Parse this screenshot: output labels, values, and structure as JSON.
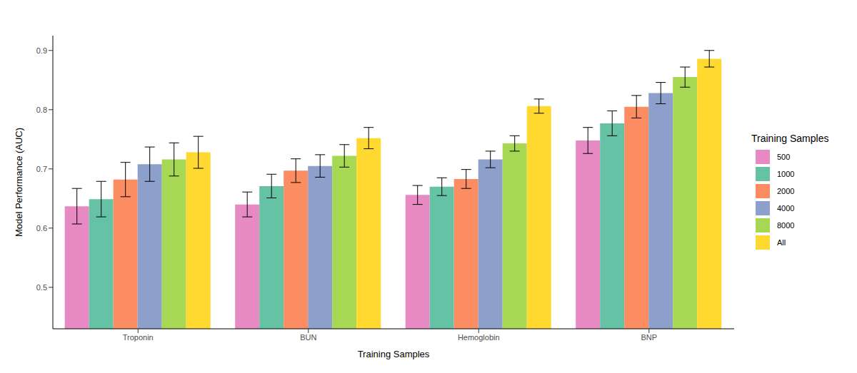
{
  "chart_data": {
    "type": "bar",
    "x_label": "Training Samples",
    "y_label": "Model Performance (AUC)",
    "legend_title": "Training Samples",
    "legend": "right",
    "grid": false,
    "categories": [
      "Troponin",
      "BUN",
      "Hemoglobin",
      "BNP"
    ],
    "ylim": [
      0.43,
      0.925
    ],
    "yticks": [
      0.5,
      0.6,
      0.7,
      0.8,
      0.9
    ],
    "series": [
      {
        "name": "500",
        "color": "#E78AC3",
        "values": [
          0.637,
          0.64,
          0.656,
          0.748
        ],
        "errors": [
          0.03,
          0.021,
          0.016,
          0.022
        ]
      },
      {
        "name": "1000",
        "color": "#66C2A5",
        "values": [
          0.649,
          0.671,
          0.67,
          0.777
        ],
        "errors": [
          0.03,
          0.02,
          0.015,
          0.021
        ]
      },
      {
        "name": "2000",
        "color": "#FC8D62",
        "values": [
          0.682,
          0.697,
          0.683,
          0.805
        ],
        "errors": [
          0.029,
          0.02,
          0.016,
          0.019
        ]
      },
      {
        "name": "4000",
        "color": "#8DA0CB",
        "values": [
          0.708,
          0.705,
          0.716,
          0.828
        ],
        "errors": [
          0.029,
          0.019,
          0.014,
          0.018
        ]
      },
      {
        "name": "8000",
        "color": "#A6D854",
        "values": [
          0.716,
          0.722,
          0.743,
          0.855
        ],
        "errors": [
          0.028,
          0.019,
          0.013,
          0.017
        ]
      },
      {
        "name": "All",
        "color": "#FFD92F",
        "values": [
          0.728,
          0.752,
          0.806,
          0.886
        ],
        "errors": [
          0.027,
          0.018,
          0.012,
          0.014
        ]
      }
    ]
  }
}
